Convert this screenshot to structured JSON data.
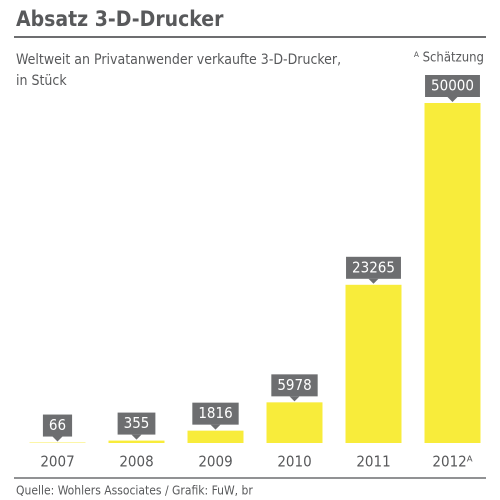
{
  "chart_data": {
    "type": "bar",
    "title": "Absatz 3-D-Drucker",
    "subtitle": [
      "Weltweit an Privatanwender verkaufte 3-D-Drucker,",
      "in Stück"
    ],
    "note": "ᴬ Schätzung",
    "categories": [
      "2007",
      "2008",
      "2009",
      "2010",
      "2011",
      "2012ᴬ"
    ],
    "values": [
      66,
      355,
      1816,
      5978,
      23265,
      50000
    ],
    "color": "#f8ec3b",
    "ylim": [
      0,
      50000
    ],
    "source": "Quelle: Wohlers Associates / Grafik: FuW, br"
  }
}
